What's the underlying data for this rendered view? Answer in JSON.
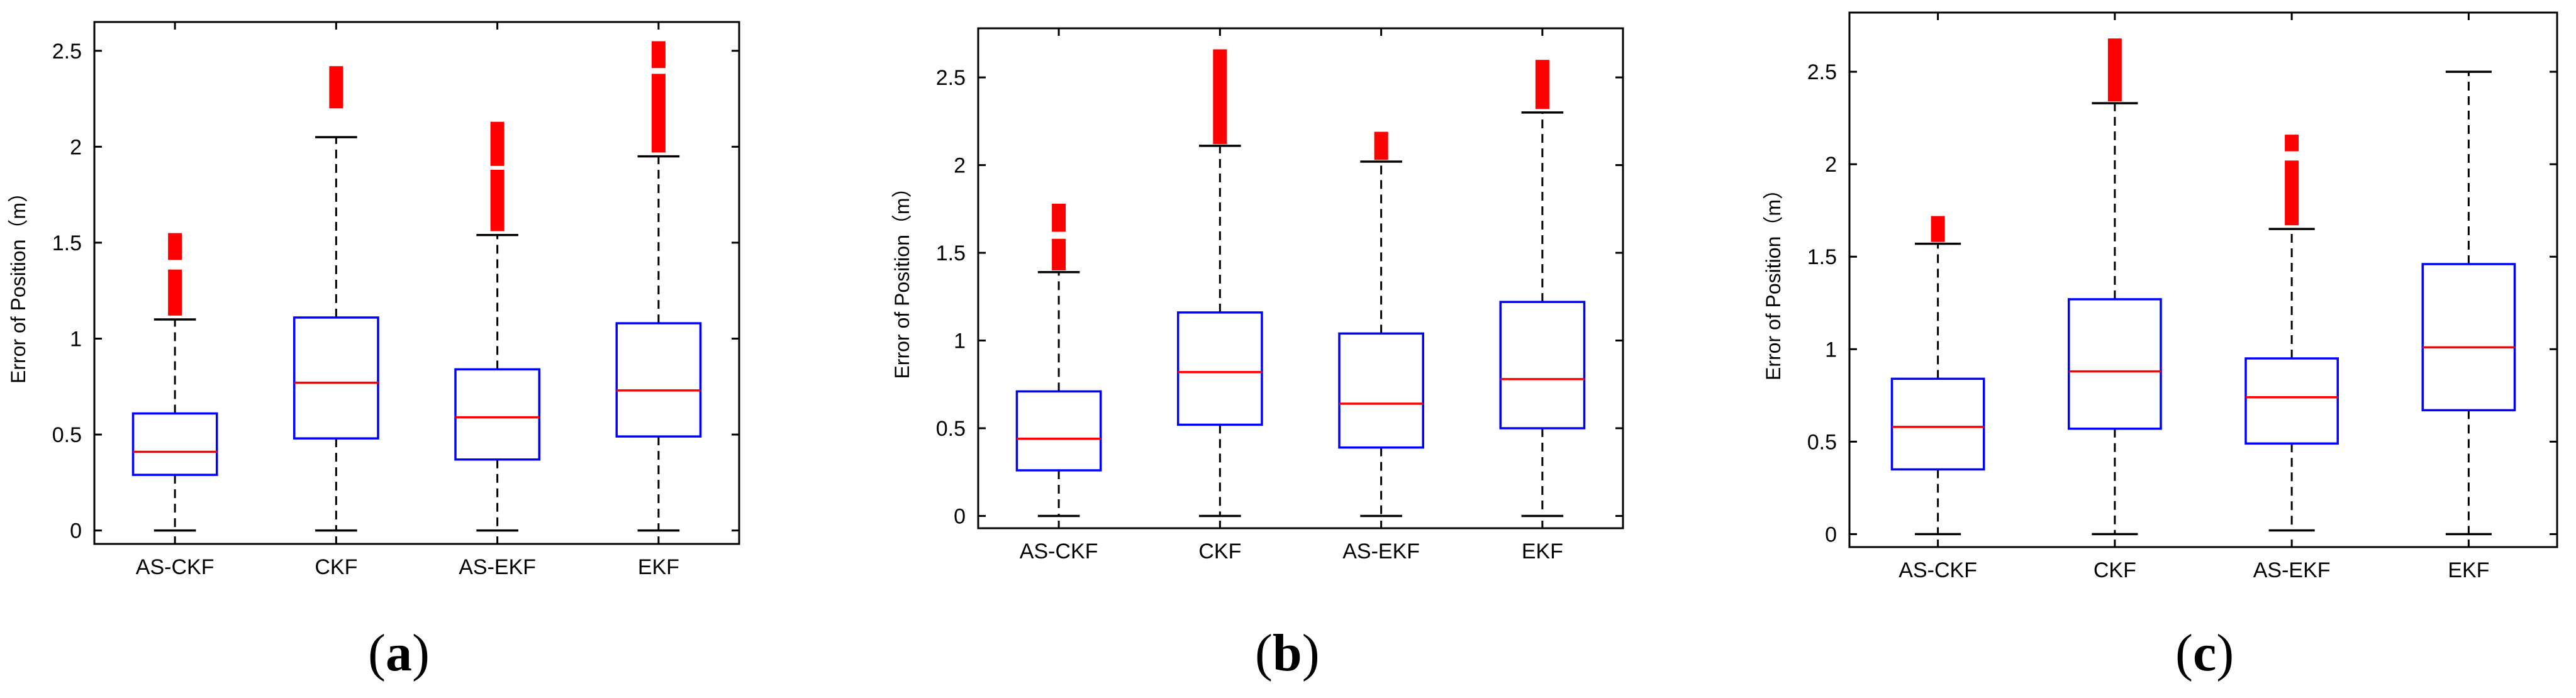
{
  "chart_data": [
    {
      "type": "box",
      "panel_label": "a",
      "title": "",
      "xlabel": "",
      "ylabel": "Error of Position（m）",
      "ylim": [
        -0.07,
        2.65
      ],
      "yticks": [
        0,
        0.5,
        1,
        1.5,
        2,
        2.5
      ],
      "ytick_labels": [
        "0",
        "0.5",
        "1",
        "1.5",
        "2",
        "2.5"
      ],
      "grid": false,
      "categories": [
        "AS-CKF",
        "CKF",
        "AS-EKF",
        "EKF"
      ],
      "boxes": [
        {
          "name": "AS-CKF",
          "whisker_low": 0,
          "q1": 0.29,
          "median": 0.41,
          "q3": 0.61,
          "whisker_high": 1.1,
          "outliers": [
            [
              1.12,
              1.36
            ],
            [
              1.41,
              1.55
            ]
          ]
        },
        {
          "name": "CKF",
          "whisker_low": 0,
          "q1": 0.48,
          "median": 0.77,
          "q3": 1.11,
          "whisker_high": 2.05,
          "outliers": [
            [
              2.2,
              2.42
            ]
          ]
        },
        {
          "name": "AS-EKF",
          "whisker_low": 0,
          "q1": 0.37,
          "median": 0.59,
          "q3": 0.84,
          "whisker_high": 1.54,
          "outliers": [
            [
              1.56,
              1.88
            ],
            [
              1.9,
              2.13
            ]
          ]
        },
        {
          "name": "EKF",
          "whisker_low": 0,
          "q1": 0.49,
          "median": 0.73,
          "q3": 1.08,
          "whisker_high": 1.95,
          "outliers": [
            [
              1.97,
              2.38
            ],
            [
              2.41,
              2.55
            ]
          ]
        }
      ]
    },
    {
      "type": "box",
      "panel_label": "b",
      "title": "",
      "xlabel": "",
      "ylabel": "Error of Position（m）",
      "ylim": [
        -0.07,
        2.78
      ],
      "yticks": [
        0,
        0.5,
        1,
        1.5,
        2,
        2.5
      ],
      "ytick_labels": [
        "0",
        "0.5",
        "1",
        "1.5",
        "2",
        "2.5"
      ],
      "grid": false,
      "categories": [
        "AS-CKF",
        "CKF",
        "AS-EKF",
        "EKF"
      ],
      "boxes": [
        {
          "name": "AS-CKF",
          "whisker_low": 0,
          "q1": 0.26,
          "median": 0.44,
          "q3": 0.71,
          "whisker_high": 1.39,
          "outliers": [
            [
              1.4,
              1.58
            ],
            [
              1.62,
              1.78
            ]
          ]
        },
        {
          "name": "CKF",
          "whisker_low": 0,
          "q1": 0.52,
          "median": 0.82,
          "q3": 1.16,
          "whisker_high": 2.11,
          "outliers": [
            [
              2.12,
              2.66
            ]
          ]
        },
        {
          "name": "AS-EKF",
          "whisker_low": 0,
          "q1": 0.39,
          "median": 0.64,
          "q3": 1.04,
          "whisker_high": 2.02,
          "outliers": [
            [
              2.03,
              2.19
            ]
          ]
        },
        {
          "name": "EKF",
          "whisker_low": 0,
          "q1": 0.5,
          "median": 0.78,
          "q3": 1.22,
          "whisker_high": 2.3,
          "outliers": [
            [
              2.32,
              2.6
            ]
          ]
        }
      ]
    },
    {
      "type": "box",
      "panel_label": "c",
      "title": "",
      "xlabel": "",
      "ylabel": "Error of Position（m）",
      "ylim": [
        -0.07,
        2.82
      ],
      "yticks": [
        0,
        0.5,
        1,
        1.5,
        2,
        2.5
      ],
      "ytick_labels": [
        "0",
        "0.5",
        "1",
        "1.5",
        "2",
        "2.5"
      ],
      "grid": false,
      "categories": [
        "AS-CKF",
        "CKF",
        "AS-EKF",
        "EKF"
      ],
      "boxes": [
        {
          "name": "AS-CKF",
          "whisker_low": 0,
          "q1": 0.35,
          "median": 0.58,
          "q3": 0.84,
          "whisker_high": 1.57,
          "outliers": [
            [
              1.58,
              1.72
            ]
          ]
        },
        {
          "name": "CKF",
          "whisker_low": 0,
          "q1": 0.57,
          "median": 0.88,
          "q3": 1.27,
          "whisker_high": 2.33,
          "outliers": [
            [
              2.34,
              2.68
            ]
          ]
        },
        {
          "name": "AS-EKF",
          "whisker_low": 0.02,
          "q1": 0.49,
          "median": 0.74,
          "q3": 0.95,
          "whisker_high": 1.65,
          "outliers": [
            [
              1.67,
              2.02
            ],
            [
              2.07,
              2.16
            ]
          ]
        },
        {
          "name": "EKF",
          "whisker_low": 0,
          "q1": 0.67,
          "median": 1.01,
          "q3": 1.46,
          "whisker_high": 2.5,
          "outliers": []
        }
      ]
    }
  ],
  "colors": {
    "box": "#0000ff",
    "median": "#ff0000",
    "outlier": "#ff0000",
    "whisker": "#000000",
    "axis": "#000000",
    "text": "#000000"
  }
}
